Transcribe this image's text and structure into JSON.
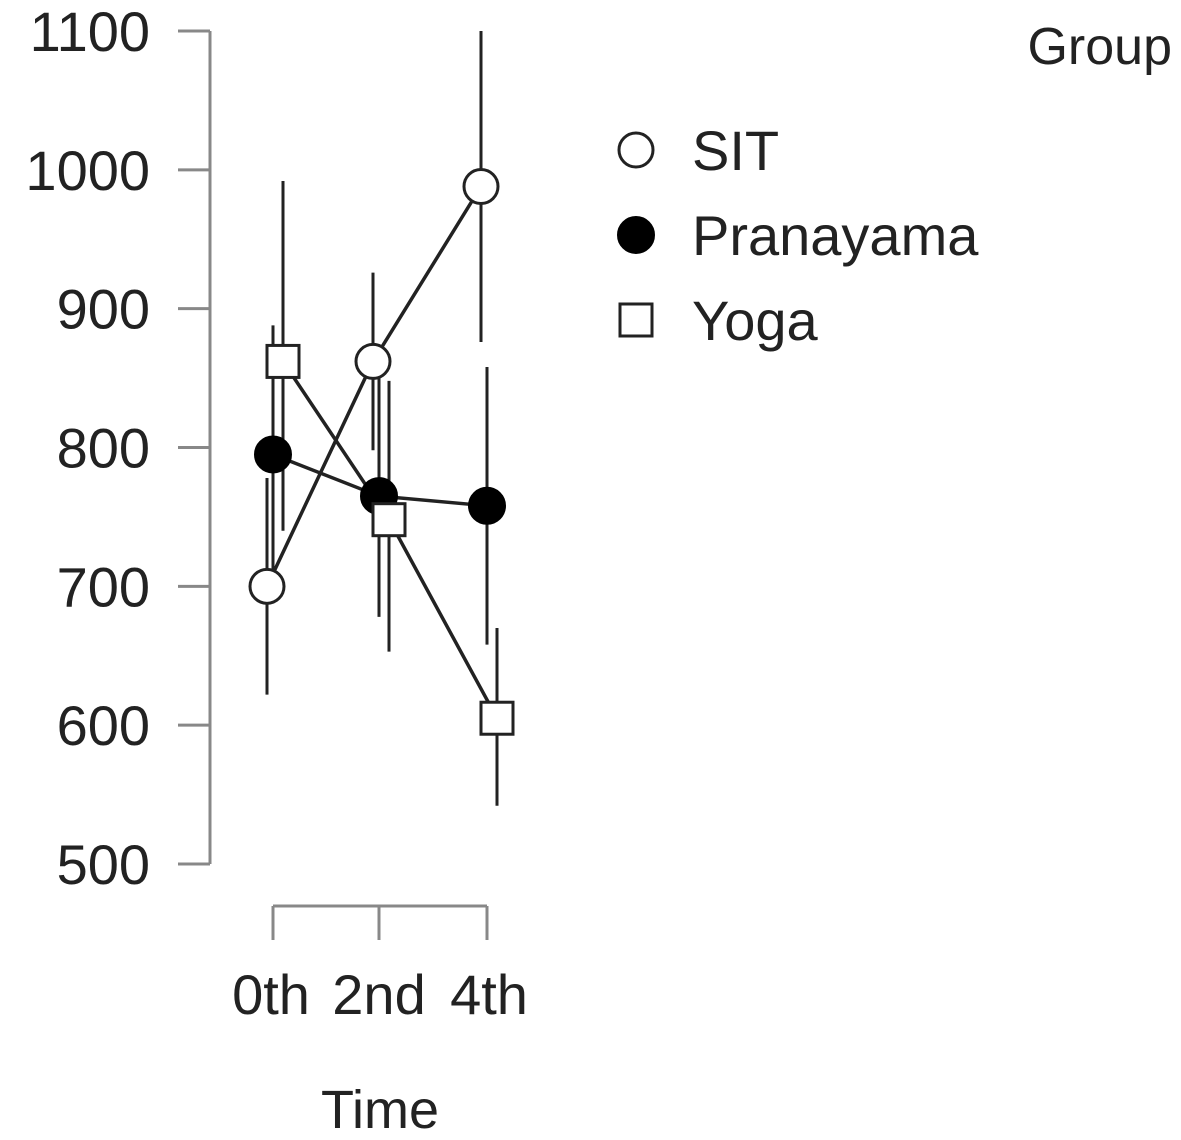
{
  "chart_data": {
    "type": "line",
    "categories": [
      "0th",
      "2nd",
      "4th"
    ],
    "xlabel": "Time",
    "ylabel": "",
    "ylim": [
      500,
      1100
    ],
    "yticks": [
      "500",
      "600",
      "700",
      "800",
      "900",
      "1000",
      "1100"
    ],
    "grid": false,
    "legend": {
      "title": "Group",
      "placement": "top-right"
    },
    "series": [
      {
        "name": "SIT",
        "marker": "circle-open",
        "values": [
          700,
          862,
          988
        ],
        "error_low": [
          622,
          798,
          876
        ],
        "error_high": [
          778,
          926,
          1100
        ]
      },
      {
        "name": "Pranayama",
        "marker": "circle-filled",
        "values": [
          795,
          765,
          758
        ],
        "error_low": [
          700,
          678,
          658
        ],
        "error_high": [
          888,
          850,
          858
        ]
      },
      {
        "name": "Yoga",
        "marker": "square-open",
        "values": [
          862,
          748,
          605
        ],
        "error_low": [
          740,
          653,
          542
        ],
        "error_high": [
          992,
          848,
          670
        ]
      }
    ],
    "colors": {
      "line": "#222222",
      "axis": "#888888",
      "open_fill": "#ffffff",
      "filled": "#000000"
    }
  }
}
